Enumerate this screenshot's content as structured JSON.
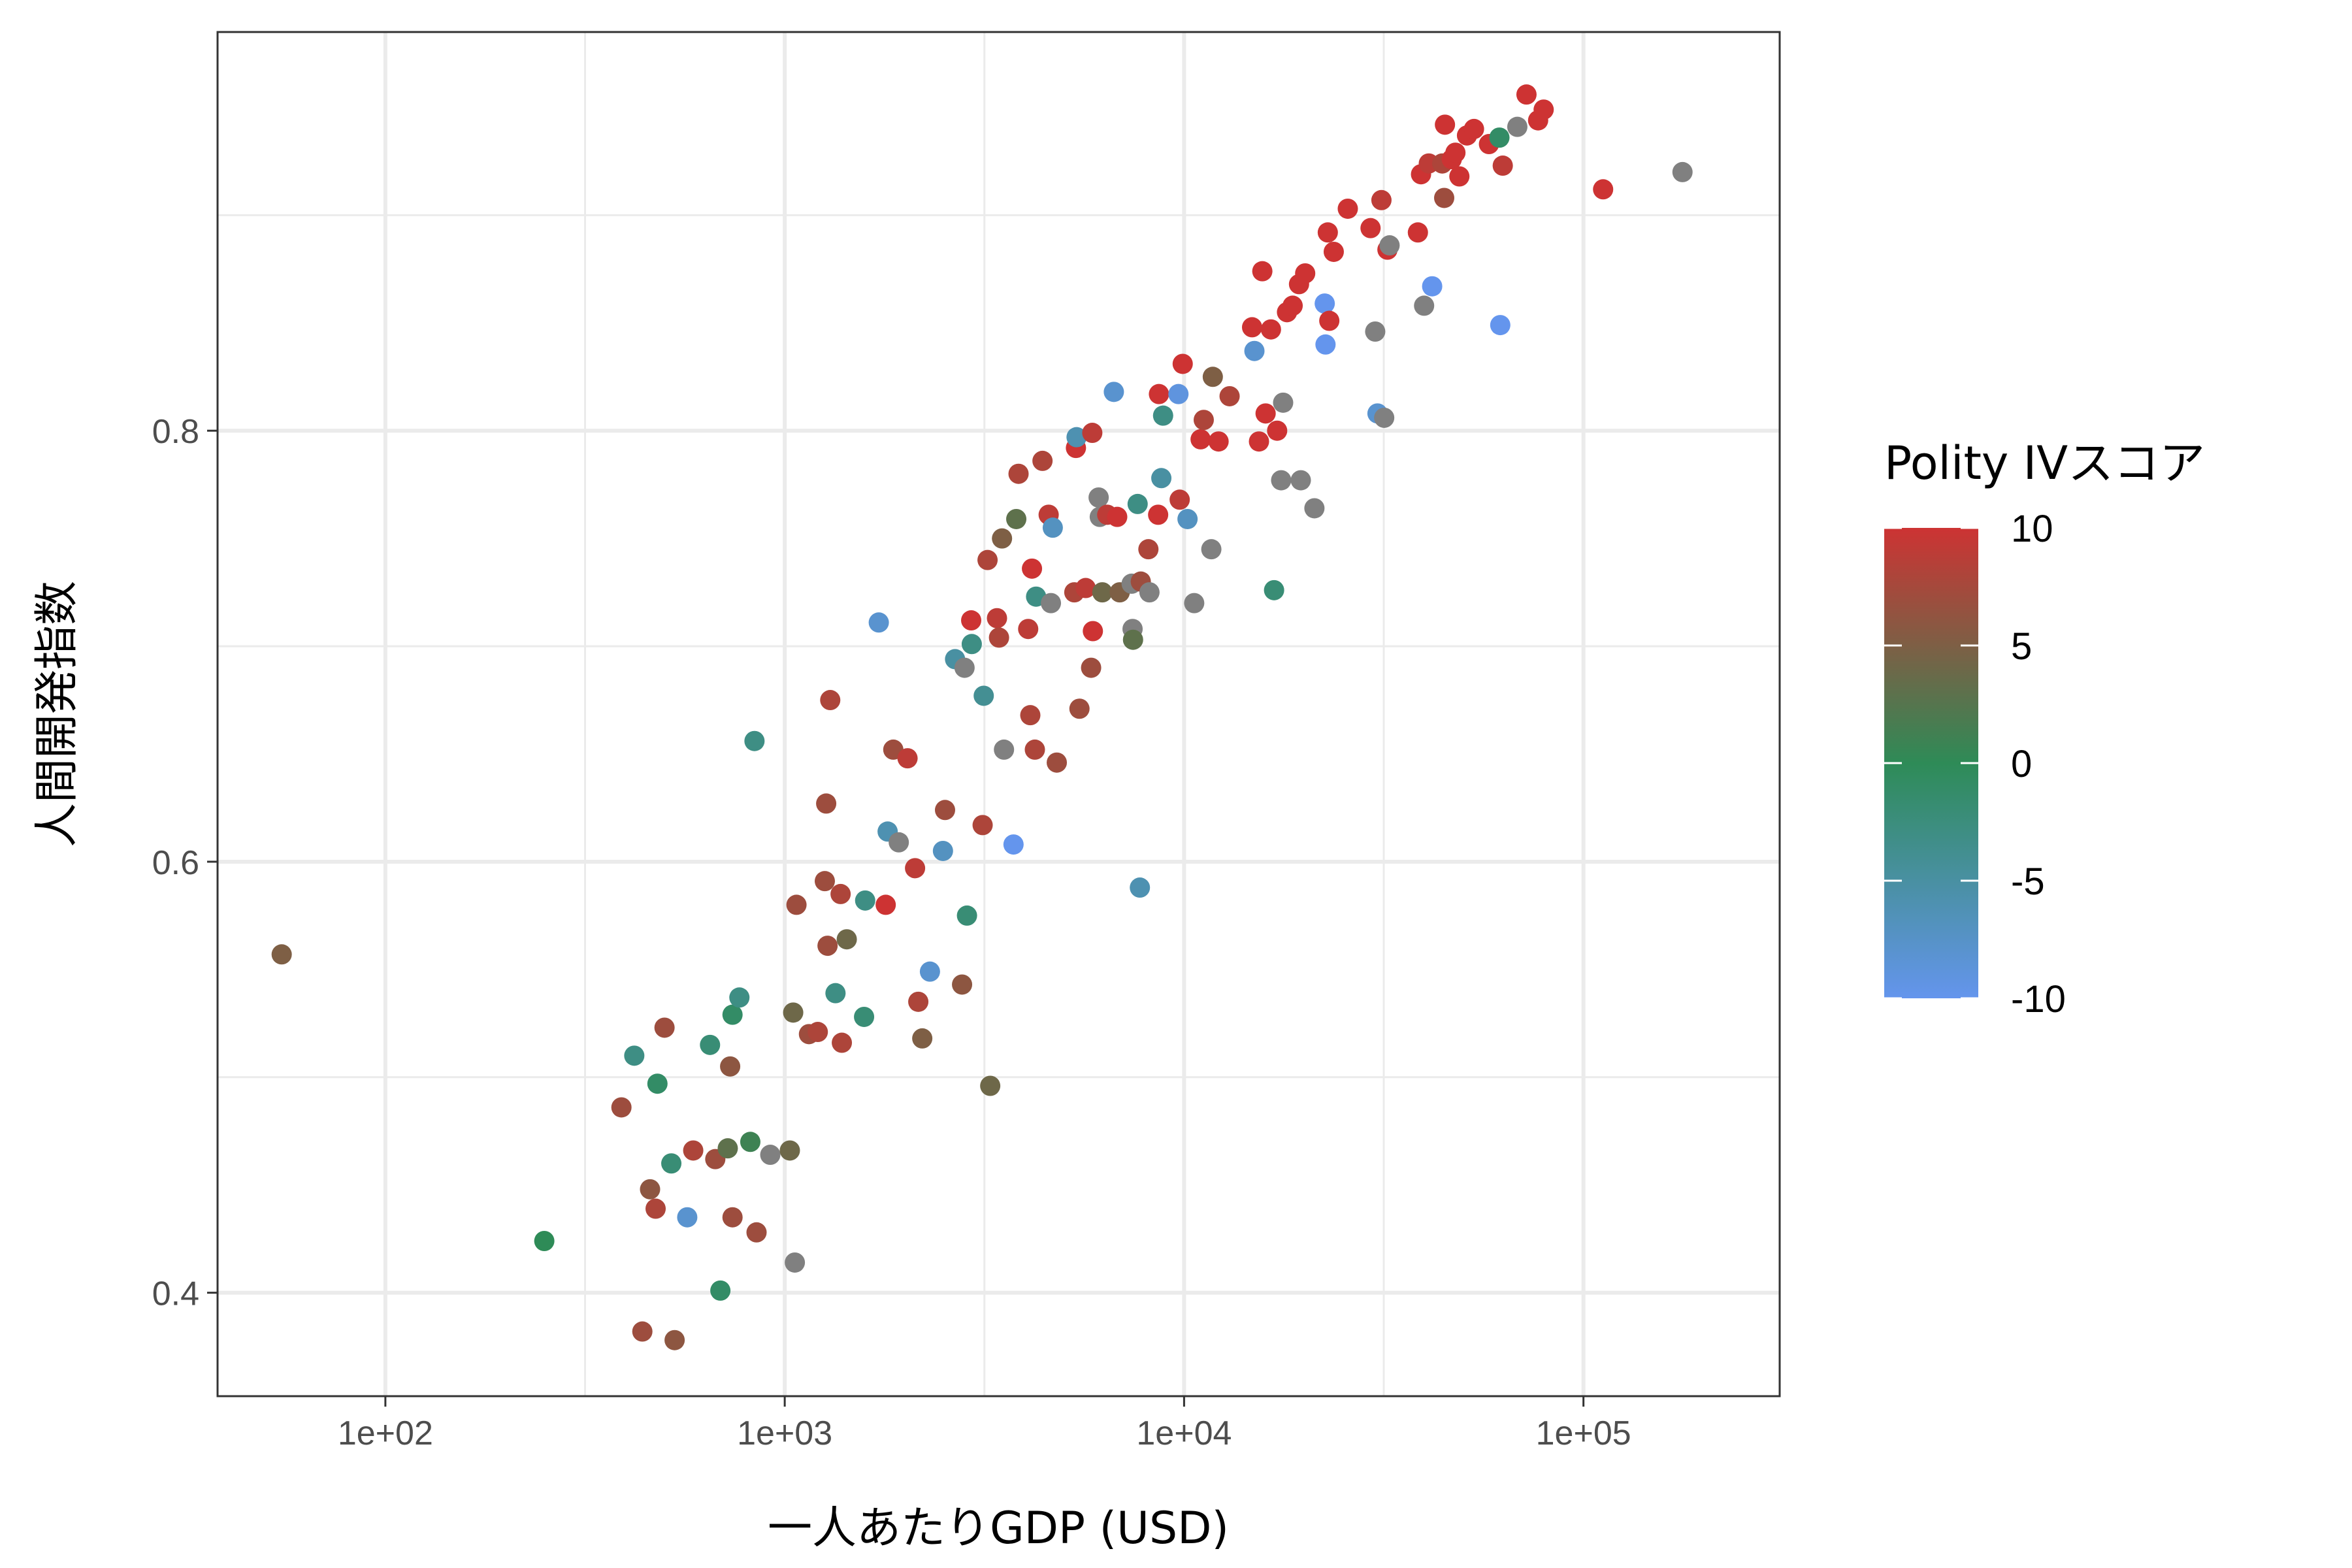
{
  "chart_data": {
    "type": "scatter",
    "xlabel": "一人あたりGDP (USD)",
    "ylabel": "人間開発指数",
    "x_scale": "log10",
    "xlim": [
      38,
      310000
    ],
    "ylim": [
      0.352,
      0.985
    ],
    "x_ticks": [
      100,
      1000,
      10000,
      100000
    ],
    "x_tick_labels": [
      "1e+02",
      "1e+03",
      "1e+04",
      "1e+05"
    ],
    "y_ticks": [
      0.4,
      0.6,
      0.8
    ],
    "y_tick_labels": [
      "0.4",
      "0.6",
      "0.8"
    ],
    "grid": true,
    "legend": {
      "title": "Polity IVスコア",
      "position": "right",
      "type": "colorbar",
      "range": [
        -10,
        10
      ],
      "ticks": [
        10,
        5,
        0,
        -5,
        -10
      ],
      "tick_labels": [
        "10",
        "5",
        "0",
        "-5",
        "-10"
      ],
      "color_low": "#6495ED",
      "color_mid": "#2E8B57",
      "color_high": "#CD3333",
      "na_color": "#808080"
    },
    "points": [
      {
        "x": 55,
        "y": 0.557,
        "c": 5
      },
      {
        "x": 250,
        "y": 0.424,
        "c": 0
      },
      {
        "x": 390,
        "y": 0.486,
        "c": 7
      },
      {
        "x": 420,
        "y": 0.51,
        "c": -3
      },
      {
        "x": 440,
        "y": 0.382,
        "c": 7
      },
      {
        "x": 460,
        "y": 0.448,
        "c": 6
      },
      {
        "x": 475,
        "y": 0.439,
        "c": 8
      },
      {
        "x": 480,
        "y": 0.497,
        "c": -1
      },
      {
        "x": 500,
        "y": 0.523,
        "c": 7
      },
      {
        "x": 520,
        "y": 0.46,
        "c": -2
      },
      {
        "x": 530,
        "y": 0.378,
        "c": 6
      },
      {
        "x": 570,
        "y": 0.435,
        "c": -8
      },
      {
        "x": 590,
        "y": 0.466,
        "c": 8
      },
      {
        "x": 650,
        "y": 0.515,
        "c": -2
      },
      {
        "x": 670,
        "y": 0.462,
        "c": 7
      },
      {
        "x": 690,
        "y": 0.401,
        "c": -1
      },
      {
        "x": 720,
        "y": 0.467,
        "c": 3
      },
      {
        "x": 730,
        "y": 0.505,
        "c": 6
      },
      {
        "x": 740,
        "y": 0.435,
        "c": 7
      },
      {
        "x": 740,
        "y": 0.529,
        "c": -1
      },
      {
        "x": 770,
        "y": 0.537,
        "c": -3
      },
      {
        "x": 820,
        "y": 0.47,
        "c": 1
      },
      {
        "x": 840,
        "y": 0.656,
        "c": -3
      },
      {
        "x": 850,
        "y": 0.428,
        "c": 7
      },
      {
        "x": 920,
        "y": 0.464,
        "c": null
      },
      {
        "x": 1030,
        "y": 0.466,
        "c": 4
      },
      {
        "x": 1050,
        "y": 0.53,
        "c": 4
      },
      {
        "x": 1060,
        "y": 0.414,
        "c": null
      },
      {
        "x": 1070,
        "y": 0.58,
        "c": 7
      },
      {
        "x": 1150,
        "y": 0.52,
        "c": 7
      },
      {
        "x": 1210,
        "y": 0.521,
        "c": 8
      },
      {
        "x": 1260,
        "y": 0.591,
        "c": 7
      },
      {
        "x": 1270,
        "y": 0.627,
        "c": 7
      },
      {
        "x": 1280,
        "y": 0.561,
        "c": 7
      },
      {
        "x": 1300,
        "y": 0.675,
        "c": 8
      },
      {
        "x": 1340,
        "y": 0.539,
        "c": -3
      },
      {
        "x": 1380,
        "y": 0.585,
        "c": 8
      },
      {
        "x": 1390,
        "y": 0.516,
        "c": 8
      },
      {
        "x": 1430,
        "y": 0.564,
        "c": 4
      },
      {
        "x": 1580,
        "y": 0.528,
        "c": -2
      },
      {
        "x": 1590,
        "y": 0.582,
        "c": -3
      },
      {
        "x": 1720,
        "y": 0.711,
        "c": -8
      },
      {
        "x": 1790,
        "y": 0.58,
        "c": 10
      },
      {
        "x": 1810,
        "y": 0.614,
        "c": -6
      },
      {
        "x": 1870,
        "y": 0.652,
        "c": 7
      },
      {
        "x": 1930,
        "y": 0.609,
        "c": null
      },
      {
        "x": 2030,
        "y": 0.648,
        "c": 9
      },
      {
        "x": 2120,
        "y": 0.597,
        "c": 9
      },
      {
        "x": 2160,
        "y": 0.535,
        "c": 8
      },
      {
        "x": 2210,
        "y": 0.518,
        "c": 5
      },
      {
        "x": 2310,
        "y": 0.549,
        "c": -8
      },
      {
        "x": 2490,
        "y": 0.605,
        "c": -7
      },
      {
        "x": 2520,
        "y": 0.624,
        "c": 7
      },
      {
        "x": 2670,
        "y": 0.694,
        "c": -5
      },
      {
        "x": 2780,
        "y": 0.543,
        "c": 6
      },
      {
        "x": 2820,
        "y": 0.69,
        "c": null
      },
      {
        "x": 2860,
        "y": 0.575,
        "c": -2
      },
      {
        "x": 2930,
        "y": 0.712,
        "c": 10
      },
      {
        "x": 2940,
        "y": 0.701,
        "c": -3
      },
      {
        "x": 3130,
        "y": 0.617,
        "c": 8
      },
      {
        "x": 3150,
        "y": 0.677,
        "c": -4
      },
      {
        "x": 3220,
        "y": 0.74,
        "c": 8
      },
      {
        "x": 3270,
        "y": 0.496,
        "c": 4
      },
      {
        "x": 3400,
        "y": 0.713,
        "c": 9
      },
      {
        "x": 3440,
        "y": 0.704,
        "c": 8
      },
      {
        "x": 3500,
        "y": 0.75,
        "c": 5
      },
      {
        "x": 3540,
        "y": 0.652,
        "c": null
      },
      {
        "x": 3740,
        "y": 0.608,
        "c": -10
      },
      {
        "x": 3800,
        "y": 0.759,
        "c": 3
      },
      {
        "x": 3850,
        "y": 0.78,
        "c": 8
      },
      {
        "x": 4070,
        "y": 0.708,
        "c": 9
      },
      {
        "x": 4120,
        "y": 0.668,
        "c": 8
      },
      {
        "x": 4160,
        "y": 0.736,
        "c": 10
      },
      {
        "x": 4230,
        "y": 0.652,
        "c": 8
      },
      {
        "x": 4260,
        "y": 0.723,
        "c": -3
      },
      {
        "x": 4420,
        "y": 0.786,
        "c": 8
      },
      {
        "x": 4580,
        "y": 0.761,
        "c": 9
      },
      {
        "x": 4640,
        "y": 0.72,
        "c": null
      },
      {
        "x": 4690,
        "y": 0.755,
        "c": -7
      },
      {
        "x": 4800,
        "y": 0.646,
        "c": 7
      },
      {
        "x": 5310,
        "y": 0.725,
        "c": 8
      },
      {
        "x": 5360,
        "y": 0.792,
        "c": 10
      },
      {
        "x": 5380,
        "y": 0.797,
        "c": -6
      },
      {
        "x": 5470,
        "y": 0.671,
        "c": 7
      },
      {
        "x": 5670,
        "y": 0.727,
        "c": 9
      },
      {
        "x": 5850,
        "y": 0.69,
        "c": 7
      },
      {
        "x": 5890,
        "y": 0.799,
        "c": 9
      },
      {
        "x": 5910,
        "y": 0.707,
        "c": 10
      },
      {
        "x": 6110,
        "y": 0.769,
        "c": null
      },
      {
        "x": 6150,
        "y": 0.76,
        "c": null
      },
      {
        "x": 6240,
        "y": 0.725,
        "c": 4
      },
      {
        "x": 6420,
        "y": 0.761,
        "c": 9
      },
      {
        "x": 6670,
        "y": 0.818,
        "c": -8
      },
      {
        "x": 6800,
        "y": 0.76,
        "c": 10
      },
      {
        "x": 6900,
        "y": 0.725,
        "c": 5
      },
      {
        "x": 7390,
        "y": 0.729,
        "c": null
      },
      {
        "x": 7430,
        "y": 0.708,
        "c": null
      },
      {
        "x": 7450,
        "y": 0.703,
        "c": 3
      },
      {
        "x": 7650,
        "y": 0.766,
        "c": -3
      },
      {
        "x": 7750,
        "y": 0.588,
        "c": -6
      },
      {
        "x": 7790,
        "y": 0.73,
        "c": 7
      },
      {
        "x": 8140,
        "y": 0.745,
        "c": 8
      },
      {
        "x": 8190,
        "y": 0.725,
        "c": null
      },
      {
        "x": 8610,
        "y": 0.761,
        "c": 10
      },
      {
        "x": 8650,
        "y": 0.817,
        "c": 10
      },
      {
        "x": 8770,
        "y": 0.778,
        "c": -5
      },
      {
        "x": 8860,
        "y": 0.807,
        "c": -3
      },
      {
        "x": 9680,
        "y": 0.817,
        "c": -9
      },
      {
        "x": 9750,
        "y": 0.768,
        "c": 9
      },
      {
        "x": 9920,
        "y": 0.831,
        "c": 10
      },
      {
        "x": 10200,
        "y": 0.759,
        "c": -7
      },
      {
        "x": 10600,
        "y": 0.72,
        "c": null
      },
      {
        "x": 11000,
        "y": 0.796,
        "c": 10
      },
      {
        "x": 11200,
        "y": 0.805,
        "c": 8
      },
      {
        "x": 11700,
        "y": 0.745,
        "c": null
      },
      {
        "x": 11800,
        "y": 0.825,
        "c": 5
      },
      {
        "x": 12200,
        "y": 0.795,
        "c": 10
      },
      {
        "x": 13000,
        "y": 0.816,
        "c": 8
      },
      {
        "x": 14800,
        "y": 0.848,
        "c": 10
      },
      {
        "x": 15000,
        "y": 0.837,
        "c": -8
      },
      {
        "x": 15400,
        "y": 0.795,
        "c": 10
      },
      {
        "x": 15700,
        "y": 0.874,
        "c": 10
      },
      {
        "x": 16000,
        "y": 0.808,
        "c": 10
      },
      {
        "x": 16500,
        "y": 0.847,
        "c": 10
      },
      {
        "x": 16800,
        "y": 0.726,
        "c": -2
      },
      {
        "x": 17100,
        "y": 0.8,
        "c": 10
      },
      {
        "x": 17500,
        "y": 0.777,
        "c": null
      },
      {
        "x": 17700,
        "y": 0.813,
        "c": null
      },
      {
        "x": 18100,
        "y": 0.855,
        "c": 10
      },
      {
        "x": 18700,
        "y": 0.858,
        "c": 10
      },
      {
        "x": 19400,
        "y": 0.868,
        "c": 10
      },
      {
        "x": 19600,
        "y": 0.777,
        "c": null
      },
      {
        "x": 20100,
        "y": 0.873,
        "c": 10
      },
      {
        "x": 21200,
        "y": 0.764,
        "c": null
      },
      {
        "x": 22500,
        "y": 0.859,
        "c": -10
      },
      {
        "x": 22600,
        "y": 0.84,
        "c": -10
      },
      {
        "x": 22900,
        "y": 0.892,
        "c": 10
      },
      {
        "x": 23100,
        "y": 0.851,
        "c": 10
      },
      {
        "x": 23700,
        "y": 0.883,
        "c": 10
      },
      {
        "x": 25700,
        "y": 0.903,
        "c": 10
      },
      {
        "x": 29300,
        "y": 0.894,
        "c": 10
      },
      {
        "x": 30100,
        "y": 0.846,
        "c": null
      },
      {
        "x": 30500,
        "y": 0.808,
        "c": -8
      },
      {
        "x": 31200,
        "y": 0.907,
        "c": 9
      },
      {
        "x": 31700,
        "y": 0.806,
        "c": null
      },
      {
        "x": 32300,
        "y": 0.884,
        "c": 10
      },
      {
        "x": 32700,
        "y": 0.886,
        "c": null
      },
      {
        "x": 38500,
        "y": 0.892,
        "c": 10
      },
      {
        "x": 39200,
        "y": 0.919,
        "c": 10
      },
      {
        "x": 39900,
        "y": 0.858,
        "c": null
      },
      {
        "x": 41000,
        "y": 0.924,
        "c": 9
      },
      {
        "x": 41800,
        "y": 0.867,
        "c": -10
      },
      {
        "x": 44300,
        "y": 0.924,
        "c": 8
      },
      {
        "x": 44800,
        "y": 0.908,
        "c": 7
      },
      {
        "x": 45000,
        "y": 0.942,
        "c": 10
      },
      {
        "x": 46800,
        "y": 0.926,
        "c": 10
      },
      {
        "x": 47800,
        "y": 0.929,
        "c": 10
      },
      {
        "x": 48900,
        "y": 0.918,
        "c": 10
      },
      {
        "x": 51100,
        "y": 0.937,
        "c": 10
      },
      {
        "x": 53200,
        "y": 0.94,
        "c": 10
      },
      {
        "x": 58000,
        "y": 0.933,
        "c": 10
      },
      {
        "x": 61600,
        "y": 0.936,
        "c": -1
      },
      {
        "x": 61900,
        "y": 0.849,
        "c": -10
      },
      {
        "x": 62800,
        "y": 0.923,
        "c": 9
      },
      {
        "x": 68300,
        "y": 0.941,
        "c": null
      },
      {
        "x": 72000,
        "y": 0.956,
        "c": 10
      },
      {
        "x": 77000,
        "y": 0.944,
        "c": 10
      },
      {
        "x": 79500,
        "y": 0.949,
        "c": 10
      },
      {
        "x": 112000,
        "y": 0.912,
        "c": 10
      },
      {
        "x": 177000,
        "y": 0.92,
        "c": null
      }
    ]
  }
}
